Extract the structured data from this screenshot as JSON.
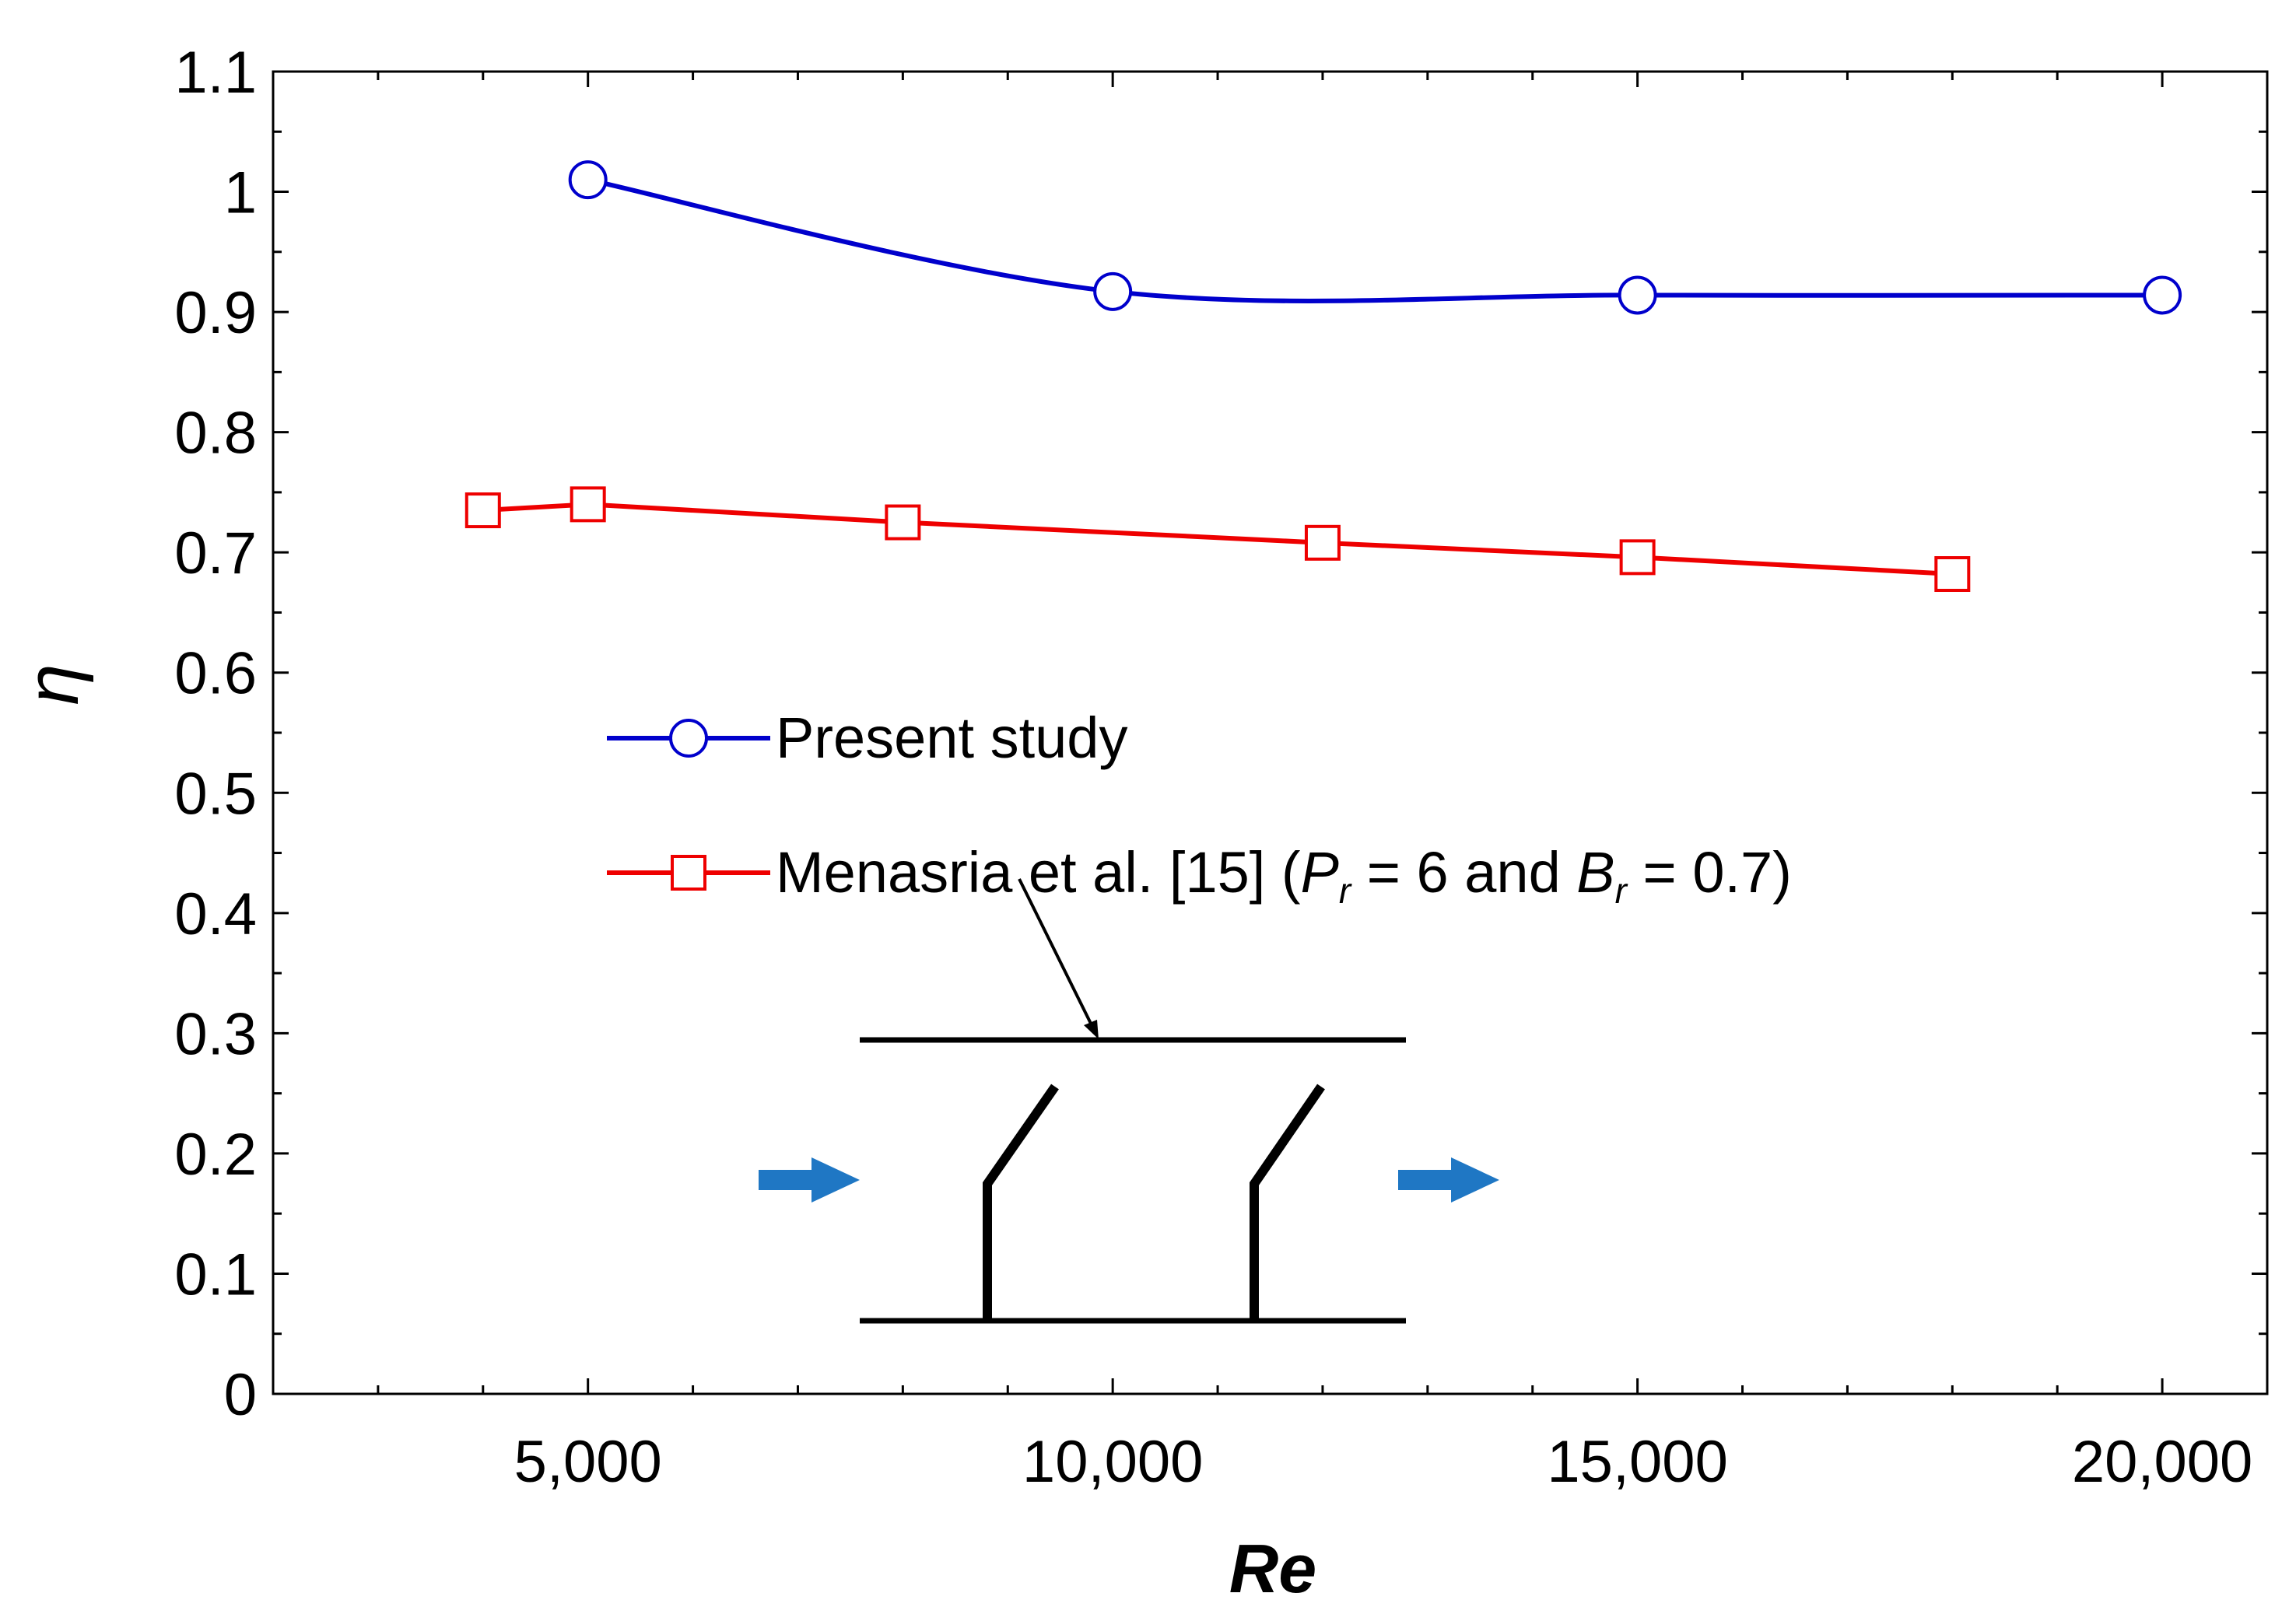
{
  "chart_data": {
    "type": "line",
    "title": "",
    "xlabel": "Re",
    "ylabel": "η",
    "xlim": [
      2000,
      21000
    ],
    "ylim": [
      0,
      1.1
    ],
    "grid": false,
    "legend_position": "center-left",
    "x_ticks": [
      5000,
      10000,
      15000,
      20000
    ],
    "x_tick_labels": [
      "5,000",
      "10,000",
      "15,000",
      "20,000"
    ],
    "y_ticks": [
      0,
      0.1,
      0.2,
      0.3,
      0.4,
      0.5,
      0.6,
      0.7,
      0.8,
      0.9,
      1,
      1.1
    ],
    "y_tick_labels": [
      "0",
      "0.1",
      "0.2",
      "0.3",
      "0.4",
      "0.5",
      "0.6",
      "0.7",
      "0.8",
      "0.9",
      "1",
      "1.1"
    ],
    "series": [
      {
        "name": "Present study",
        "color": "#0000cc",
        "marker": "circle",
        "smooth": true,
        "x": [
          5000,
          10000,
          15000,
          20000
        ],
        "y": [
          1.01,
          0.917,
          0.914,
          0.914
        ]
      },
      {
        "name": "Menasria et al. [15]",
        "name_note": "(Pr = 6 and Br = 0.7)",
        "color": "#ee0000",
        "marker": "square",
        "smooth": false,
        "x": [
          4000,
          5000,
          8000,
          12000,
          15000,
          18000
        ],
        "y": [
          0.735,
          0.74,
          0.725,
          0.708,
          0.696,
          0.682
        ]
      }
    ],
    "legend": {
      "entry1": "Present study",
      "entry2_main": "Menasria et al. [15]  (",
      "entry2_p": "P",
      "entry2_sub1": "r",
      "entry2_mid": " = 6 and ",
      "entry2_b": "B",
      "entry2_sub2": "r",
      "entry2_end": " = 0.7)"
    },
    "inset": {
      "description_icon": "baffled-channel-diagram",
      "arrow_color": "#1f77c4"
    }
  }
}
